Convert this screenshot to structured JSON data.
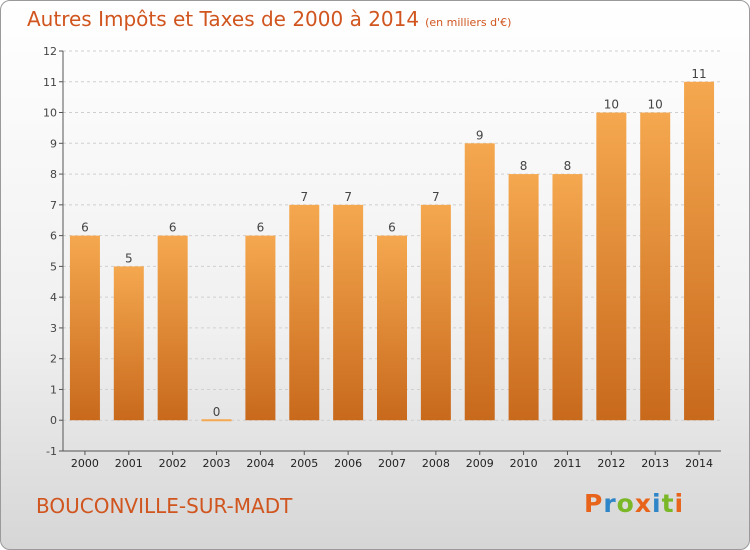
{
  "title": "Autres Impôts et Taxes de 2000 à 2014",
  "unit": "(en milliers d'€)",
  "commune": "BOUCONVILLE-SUR-MADT",
  "logo": {
    "letters": [
      "P",
      "r",
      "o",
      "x",
      "i",
      "t",
      "i"
    ],
    "colors": [
      "#e8641b",
      "#2e86c8",
      "#7ab828",
      "#e8641b",
      "#2e86c8",
      "#7ab828",
      "#e8641b"
    ]
  },
  "colors": {
    "bar_top": "#f5a84f",
    "bar_bottom": "#c8691c",
    "text": "#d0551e"
  },
  "chart_data": {
    "type": "bar",
    "title": "Autres Impôts et Taxes de 2000 à 2014",
    "categories": [
      "2000",
      "2001",
      "2002",
      "2003",
      "2004",
      "2005",
      "2006",
      "2007",
      "2008",
      "2009",
      "2010",
      "2011",
      "2012",
      "2013",
      "2014"
    ],
    "values": [
      6,
      5,
      6,
      0,
      6,
      7,
      7,
      6,
      7,
      9,
      8,
      8,
      10,
      10,
      11
    ],
    "ylim": [
      -1,
      12
    ],
    "yticks": [
      "-1",
      "0",
      "1",
      "2",
      "3",
      "4",
      "5",
      "6",
      "7",
      "8",
      "9",
      "10",
      "11",
      "12"
    ],
    "grid": true,
    "xlabel": "",
    "ylabel": ""
  }
}
